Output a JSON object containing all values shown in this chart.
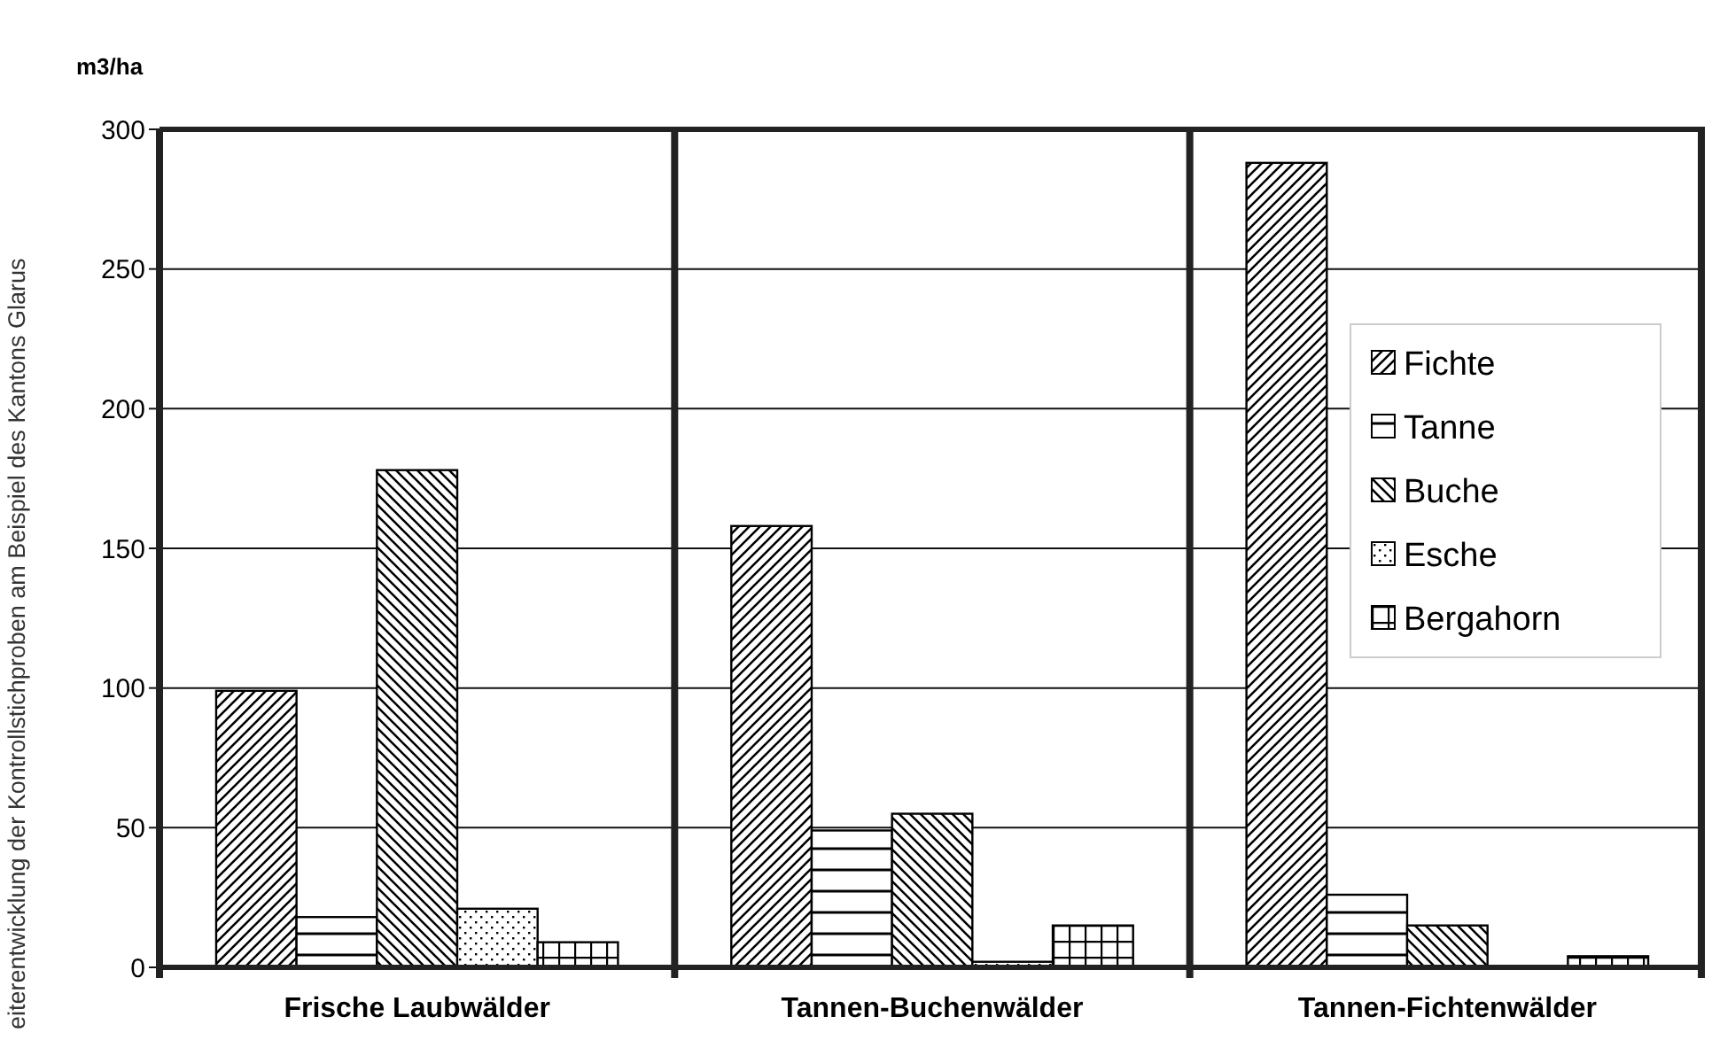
{
  "chart_data": {
    "type": "bar",
    "ylabel": "m3/ha",
    "categories": [
      "Frische Laubwälder",
      "Tannen-Buchenwälder",
      "Tannen-Fichtenwälder"
    ],
    "series": [
      {
        "name": "Fichte",
        "color": "#000000",
        "values": [
          99,
          158,
          288
        ]
      },
      {
        "name": "Tanne",
        "color": "#000000",
        "values": [
          18,
          49,
          26
        ]
      },
      {
        "name": "Buche",
        "color": "#000000",
        "values": [
          178,
          55,
          15
        ]
      },
      {
        "name": "Esche",
        "color": "#000000",
        "values": [
          21,
          2,
          null
        ]
      },
      {
        "name": "Bergahorn",
        "color": "#000000",
        "values": [
          9,
          15,
          4
        ]
      }
    ],
    "ylim": [
      0,
      300
    ],
    "yticks": [
      0,
      50,
      100,
      150,
      200,
      250,
      300
    ],
    "grid": "y",
    "legend": "right",
    "annotations": [
      "eiterentwicklung der Kontrollstichproben am Beispiel des Kantons Glarus"
    ]
  }
}
